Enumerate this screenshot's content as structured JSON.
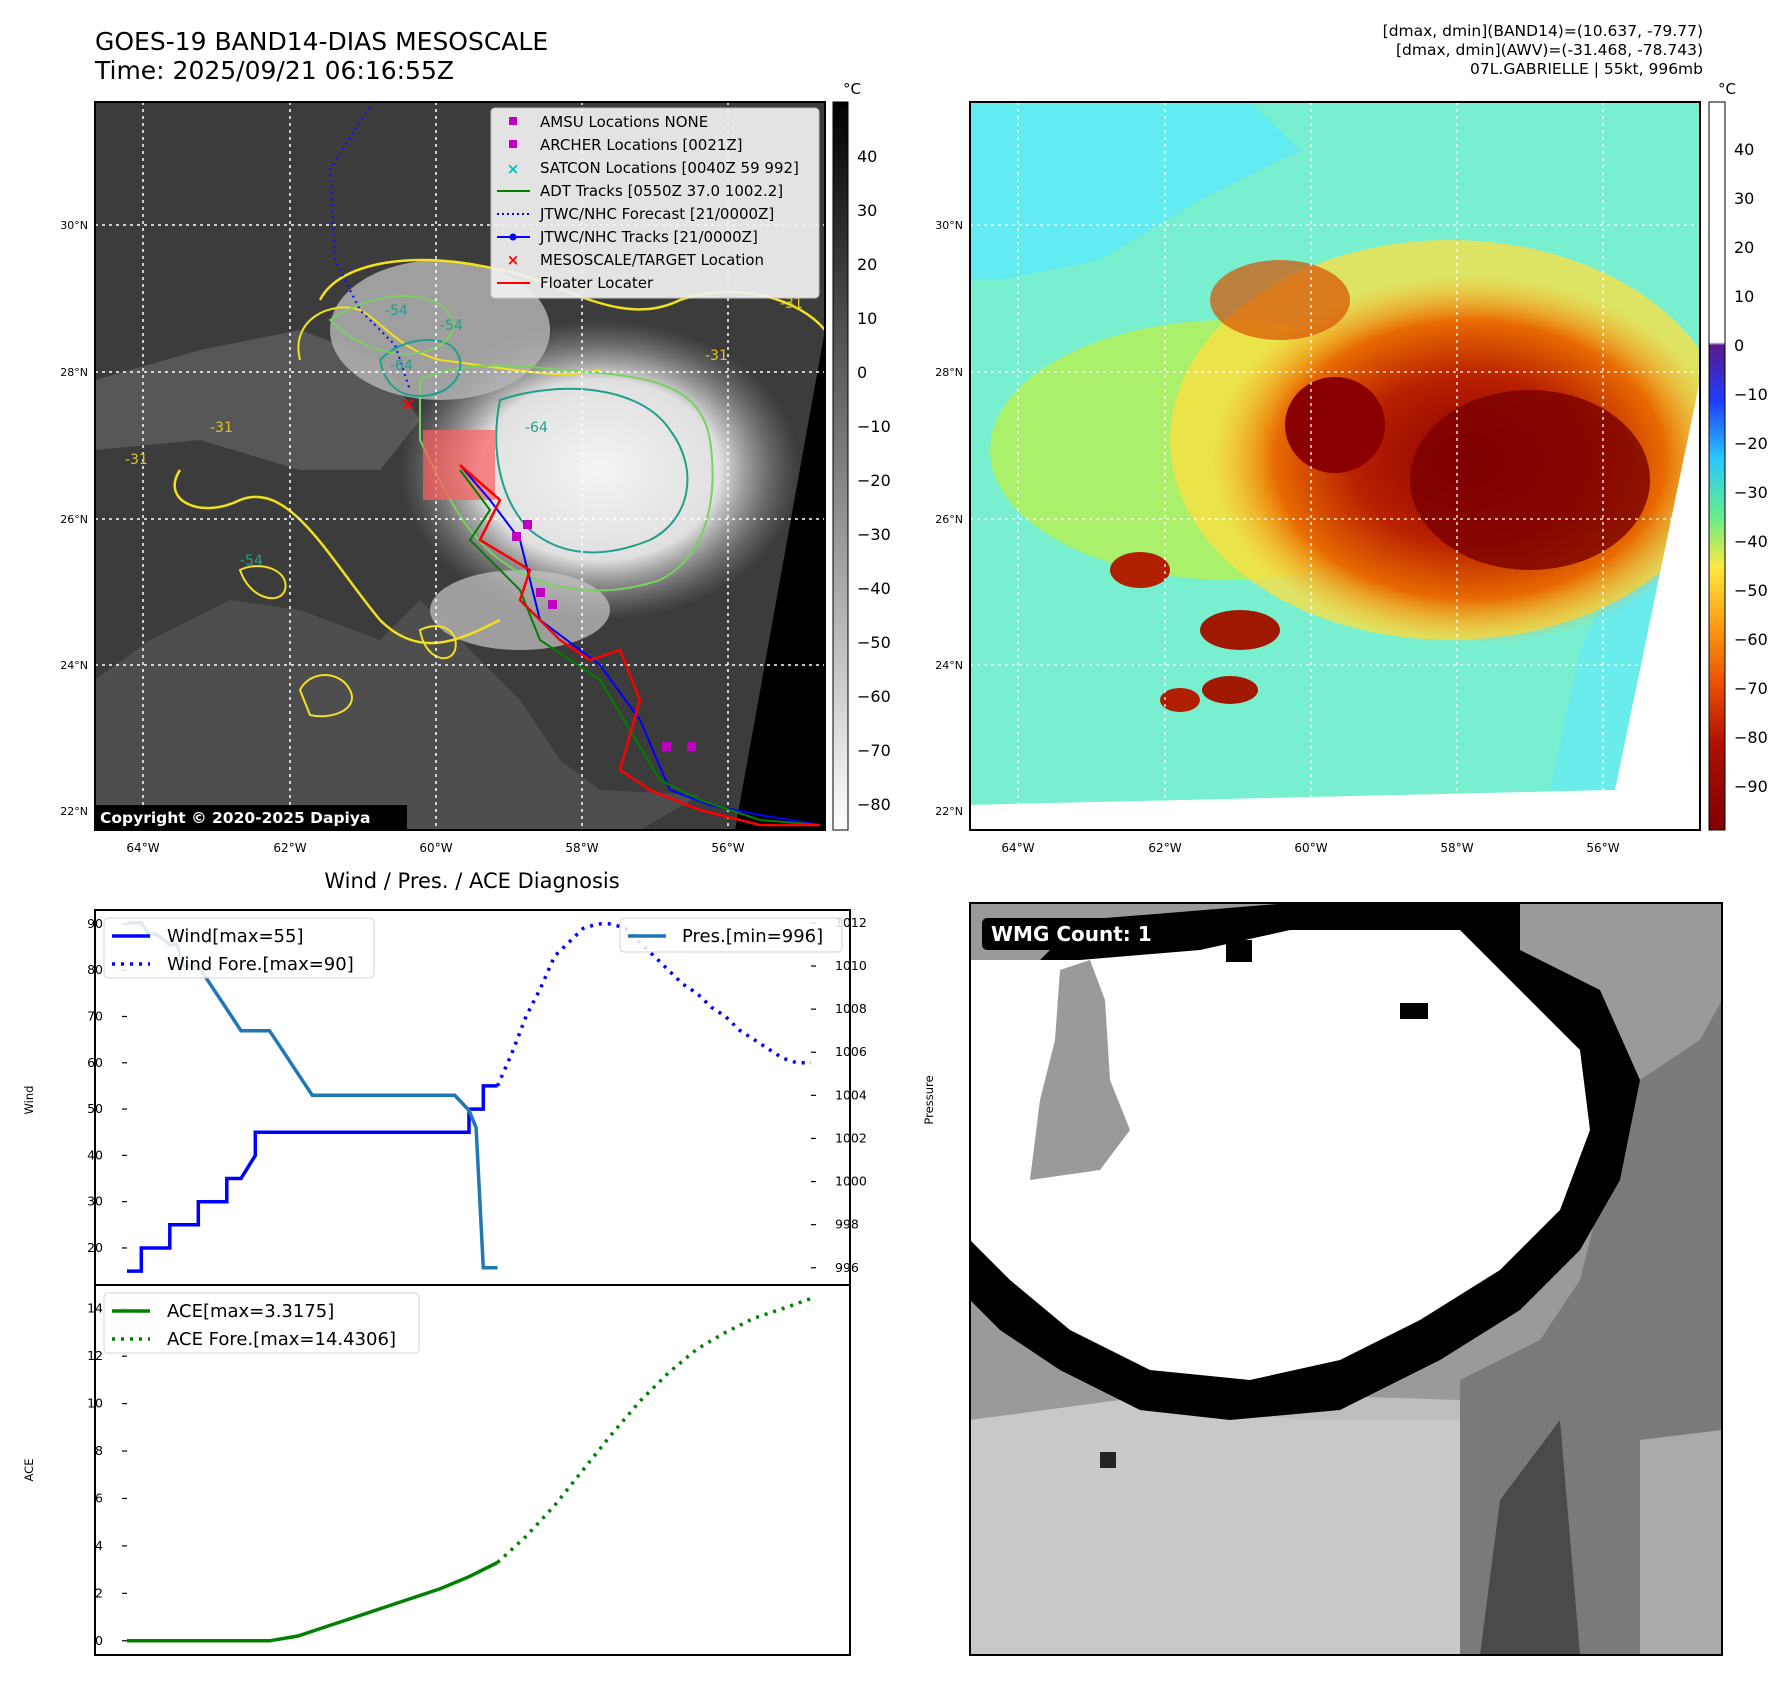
{
  "header": {
    "title_line1": "GOES-19 BAND14-DIAS MESOSCALE",
    "title_line2": "Time: 2025/09/21 06:16:55Z",
    "info_line1": "[dmax, dmin](BAND14)=(10.637, -79.77)",
    "info_line2": "[dmax, dmin](AWV)=(-31.468, -78.743)",
    "info_line3": "07L.GABRIELLE | 55kt, 996mb"
  },
  "map_left": {
    "copyright": "Copyright © 2020-2025 Dapiya",
    "cbar_unit": "°C",
    "cbar_ticks": [
      "40",
      "30",
      "20",
      "10",
      "0",
      "−10",
      "−20",
      "−30",
      "−40",
      "−50",
      "−60",
      "−70",
      "−80"
    ],
    "lat_labels": [
      "30°N",
      "28°N",
      "26°N",
      "24°N",
      "22°N"
    ],
    "lon_labels": [
      "64°W",
      "62°W",
      "60°W",
      "58°W",
      "56°W"
    ],
    "contour_labels": [
      "-54",
      "-54",
      "-64",
      "-64",
      "-31",
      "-31",
      "-31",
      "-31",
      "-54"
    ],
    "legend": [
      {
        "label": "AMSU Locations NONE",
        "color": "#c000c0",
        "marker": "square"
      },
      {
        "label": "ARCHER Locations [0021Z]",
        "color": "#c000c0",
        "marker": "square"
      },
      {
        "label": "SATCON Locations [0040Z 59 992]",
        "color": "#00bcbc",
        "marker": "x"
      },
      {
        "label": "ADT Tracks [0550Z 37.0 1002.2]",
        "color": "#008000",
        "marker": "line"
      },
      {
        "label": "JTWC/NHC Forecast [21/0000Z]",
        "color": "#0000ff",
        "marker": "dotted"
      },
      {
        "label": "JTWC/NHC Tracks [21/0000Z]",
        "color": "#0000ff",
        "marker": "line-dot"
      },
      {
        "label": "MESOSCALE/TARGET Location",
        "color": "#ff0000",
        "marker": "x"
      },
      {
        "label": "Floater Locater",
        "color": "#ff0000",
        "marker": "line"
      }
    ]
  },
  "map_right": {
    "cbar_unit": "°C",
    "cbar_ticks": [
      "40",
      "30",
      "20",
      "10",
      "0",
      "−10",
      "−20",
      "−30",
      "−40",
      "−50",
      "−60",
      "−70",
      "−80",
      "−90"
    ],
    "lat_labels": [
      "30°N",
      "28°N",
      "26°N",
      "24°N",
      "22°N"
    ],
    "lon_labels": [
      "64°W",
      "62°W",
      "60°W",
      "58°W",
      "56°W"
    ]
  },
  "wmg": {
    "label": "WMG Count: 1"
  },
  "colors": {
    "wind": "#0000ff",
    "pressure": "#1f77b4",
    "ace": "#008000",
    "floater": "#ff0000",
    "label_box": "#000000"
  },
  "chart_data": [
    {
      "type": "line",
      "title": "Wind / Pres. / ACE Diagnosis",
      "ylabel": "Wind",
      "ylabel_right": "Pressure",
      "ylim": [
        12,
        93
      ],
      "ylim_right": [
        995.2,
        1012.6
      ],
      "yticks": [
        "20",
        "30",
        "40",
        "50",
        "60",
        "70",
        "80",
        "90"
      ],
      "yticks_right": [
        "996",
        "998",
        "1000",
        "1002",
        "1004",
        "1006",
        "1008",
        "1010",
        "1012"
      ],
      "legend_left": [
        "Wind[max=55]",
        "Wind Fore.[max=90]"
      ],
      "legend_right": [
        "Pres.[min=996]"
      ],
      "series": [
        {
          "name": "Wind[max=55]",
          "axis": "left",
          "style": "solid",
          "x": [
            0,
            1,
            1,
            2,
            2,
            3,
            3,
            4,
            4,
            5,
            5,
            6,
            6,
            7,
            7,
            8,
            8,
            9,
            9,
            10,
            10,
            11,
            11,
            12,
            12,
            13,
            13,
            14,
            15,
            16,
            17,
            18,
            19,
            20,
            21,
            22,
            23,
            24,
            24,
            25,
            25,
            26
          ],
          "y": [
            15,
            15,
            20,
            20,
            20,
            20,
            25,
            25,
            25,
            25,
            30,
            30,
            30,
            30,
            35,
            35,
            35,
            40,
            45,
            45,
            45,
            45,
            45,
            45,
            45,
            45,
            45,
            45,
            45,
            45,
            45,
            45,
            45,
            45,
            45,
            45,
            45,
            45,
            50,
            50,
            55,
            55
          ]
        },
        {
          "name": "Wind Fore.[max=90]",
          "axis": "left",
          "style": "dotted",
          "x": [
            26,
            27,
            28,
            29,
            30,
            31,
            32,
            33,
            34,
            35,
            36,
            37,
            38,
            39,
            40,
            41,
            42,
            43,
            44,
            45,
            46,
            47,
            48
          ],
          "y": [
            55,
            62,
            70,
            76,
            83,
            86,
            89,
            90,
            90,
            89,
            86,
            83,
            80,
            77,
            75,
            72,
            70,
            67,
            65,
            63,
            61,
            60,
            60
          ]
        },
        {
          "name": "Pres.[min=996]",
          "axis": "right",
          "style": "solid",
          "x": [
            0,
            1,
            1.5,
            2,
            3,
            3.5,
            4,
            5,
            6,
            7,
            8,
            9,
            10,
            11,
            12,
            13,
            14,
            15,
            16,
            17,
            18,
            19,
            20,
            21,
            22,
            23,
            24,
            24.5,
            25,
            26
          ],
          "y": [
            1012,
            1012,
            1011.5,
            1011.5,
            1011,
            1011,
            1010,
            1010,
            1009,
            1008,
            1007,
            1007,
            1007,
            1006,
            1005,
            1004,
            1004,
            1004,
            1004,
            1004,
            1004,
            1004,
            1004,
            1004,
            1004,
            1004,
            1003.3,
            1002.5,
            996,
            996
          ]
        }
      ]
    },
    {
      "type": "line",
      "ylabel": "ACE",
      "ylim": [
        -0.6,
        15
      ],
      "yticks": [
        "0",
        "2",
        "4",
        "6",
        "8",
        "10",
        "12",
        "14"
      ],
      "legend": [
        "ACE[max=3.3175]",
        "ACE Fore.[max=14.4306]"
      ],
      "series": [
        {
          "name": "ACE[max=3.3175]",
          "style": "solid",
          "x": [
            0,
            2,
            4,
            6,
            8,
            10,
            12,
            14,
            16,
            18,
            20,
            22,
            24,
            26
          ],
          "y": [
            0,
            0,
            0,
            0,
            0,
            0,
            0.2,
            0.6,
            1.0,
            1.4,
            1.8,
            2.2,
            2.7,
            3.3
          ]
        },
        {
          "name": "ACE Fore.[max=14.4306]",
          "style": "dotted",
          "x": [
            26,
            28,
            30,
            32,
            34,
            36,
            38,
            40,
            42,
            44,
            46,
            48
          ],
          "y": [
            3.3,
            4.4,
            5.7,
            7.2,
            8.7,
            10.1,
            11.3,
            12.3,
            13.0,
            13.6,
            14.0,
            14.43
          ]
        }
      ]
    }
  ]
}
